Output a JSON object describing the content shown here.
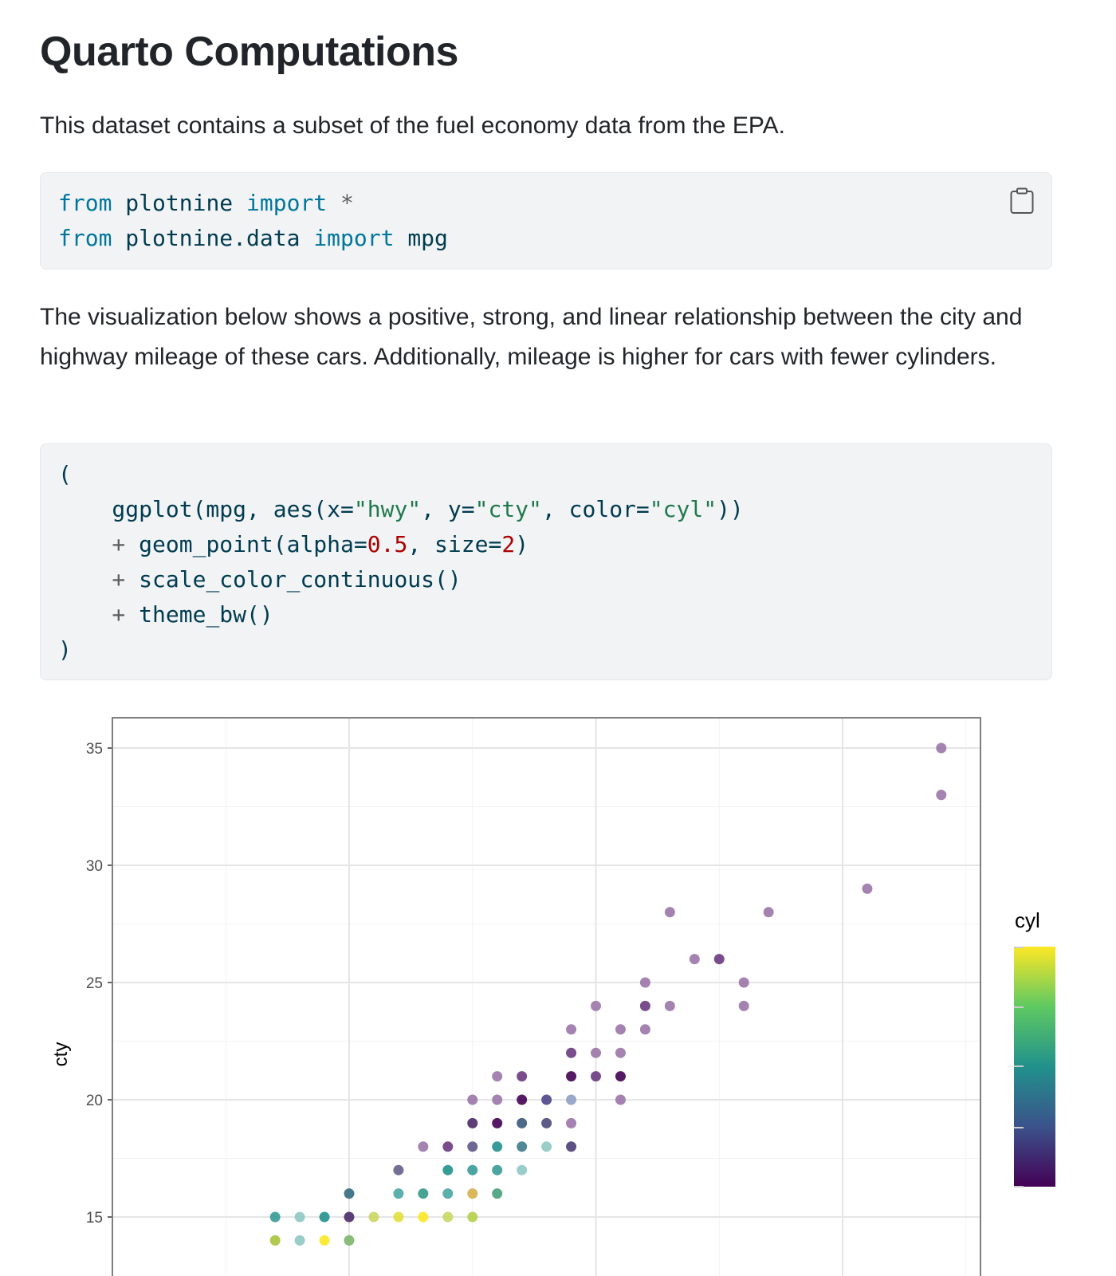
{
  "title": "Quarto Computations",
  "intro": "This dataset contains a subset of the fuel economy data from the EPA.",
  "code1": [
    [
      [
        "kw",
        "from"
      ],
      [
        "t",
        " plotnine "
      ],
      [
        "kw",
        "import"
      ],
      [
        "op",
        " *"
      ]
    ],
    [
      [
        "kw",
        "from"
      ],
      [
        "t",
        " plotnine.data "
      ],
      [
        "kw",
        "import"
      ],
      [
        "t",
        " mpg"
      ]
    ]
  ],
  "description": "The visualization below shows a positive, strong, and linear relationship between the city and highway mileage of these cars. Additionally, mileage is higher for cars with fewer cylinders.",
  "code2": [
    [
      [
        "t",
        "("
      ]
    ],
    [
      [
        "t",
        "    ggplot(mpg, aes(x="
      ],
      [
        "st",
        "\"hwy\""
      ],
      [
        "t",
        ", y="
      ],
      [
        "st",
        "\"cty\""
      ],
      [
        "t",
        ", color="
      ],
      [
        "st",
        "\"cyl\""
      ],
      [
        "t",
        "))"
      ]
    ],
    [
      [
        "op",
        "    + "
      ],
      [
        "t",
        "geom_point(alpha="
      ],
      [
        "nu",
        "0.5"
      ],
      [
        "t",
        ", size="
      ],
      [
        "nu",
        "2"
      ],
      [
        "t",
        ")"
      ]
    ],
    [
      [
        "op",
        "    + "
      ],
      [
        "t",
        "scale_color_continuous()"
      ]
    ],
    [
      [
        "op",
        "    + "
      ],
      [
        "t",
        "theme_bw()"
      ]
    ],
    [
      [
        "t",
        ")"
      ]
    ]
  ],
  "copy_icon": "clipboard-icon",
  "chart_data": {
    "type": "scatter",
    "xlabel": "",
    "ylabel": "cty",
    "xlim": [
      10.4,
      45.5
    ],
    "ylim": [
      13.3,
      36.3
    ],
    "x_major_gridlines": [
      20,
      30,
      40
    ],
    "x_minor_gridlines": [
      15,
      25,
      35,
      45
    ],
    "y_ticks": [
      15,
      20,
      25,
      30,
      35
    ],
    "y_tick_labels": [
      "15",
      "20",
      "25",
      "30",
      "35"
    ],
    "grid": true,
    "legend": {
      "title": "cyl",
      "type": "colorbar",
      "placement": "right",
      "colors": [
        "#440154",
        "#3b528b",
        "#21918c",
        "#5ec962",
        "#fde725"
      ]
    },
    "points": [
      {
        "x": 44,
        "y": 35,
        "color": "#9b76a8"
      },
      {
        "x": 44,
        "y": 33,
        "color": "#9b76a8"
      },
      {
        "x": 41,
        "y": 29,
        "color": "#9b76a8"
      },
      {
        "x": 33,
        "y": 28,
        "color": "#9b76a8"
      },
      {
        "x": 37,
        "y": 28,
        "color": "#9b76a8"
      },
      {
        "x": 34,
        "y": 26,
        "color": "#9b76a8"
      },
      {
        "x": 35,
        "y": 26,
        "color": "#6a3a7e"
      },
      {
        "x": 32,
        "y": 25,
        "color": "#9b76a8"
      },
      {
        "x": 36,
        "y": 25,
        "color": "#9b76a8"
      },
      {
        "x": 30,
        "y": 24,
        "color": "#9b76a8"
      },
      {
        "x": 32,
        "y": 24,
        "color": "#6a3a7e"
      },
      {
        "x": 33,
        "y": 24,
        "color": "#9b76a8"
      },
      {
        "x": 36,
        "y": 24,
        "color": "#9b76a8"
      },
      {
        "x": 29,
        "y": 23,
        "color": "#9b76a8"
      },
      {
        "x": 31,
        "y": 23,
        "color": "#9b76a8"
      },
      {
        "x": 32,
        "y": 23,
        "color": "#9b76a8"
      },
      {
        "x": 29,
        "y": 22,
        "color": "#6a3a7e"
      },
      {
        "x": 30,
        "y": 22,
        "color": "#9b76a8"
      },
      {
        "x": 31,
        "y": 22,
        "color": "#9b76a8"
      },
      {
        "x": 26,
        "y": 21,
        "color": "#9b76a8"
      },
      {
        "x": 27,
        "y": 21,
        "color": "#6a3a7e"
      },
      {
        "x": 29,
        "y": 21,
        "color": "#440154"
      },
      {
        "x": 30,
        "y": 21,
        "color": "#6a3a7e"
      },
      {
        "x": 31,
        "y": 21,
        "color": "#440154"
      },
      {
        "x": 25,
        "y": 20,
        "color": "#9b76a8"
      },
      {
        "x": 26,
        "y": 20,
        "color": "#9b76a8"
      },
      {
        "x": 27,
        "y": 20,
        "color": "#440154"
      },
      {
        "x": 28,
        "y": 20,
        "color": "#4c4587"
      },
      {
        "x": 29,
        "y": 20,
        "color": "#8fa0c4"
      },
      {
        "x": 31,
        "y": 20,
        "color": "#9b76a8"
      },
      {
        "x": 25,
        "y": 19,
        "color": "#4b2a68"
      },
      {
        "x": 26,
        "y": 19,
        "color": "#440154"
      },
      {
        "x": 27,
        "y": 19,
        "color": "#3a5a7c"
      },
      {
        "x": 28,
        "y": 19,
        "color": "#4a4a7c"
      },
      {
        "x": 29,
        "y": 19,
        "color": "#9b76a8"
      },
      {
        "x": 23,
        "y": 18,
        "color": "#9b76a8"
      },
      {
        "x": 24,
        "y": 18,
        "color": "#6a3a7e"
      },
      {
        "x": 25,
        "y": 18,
        "color": "#5f5688"
      },
      {
        "x": 26,
        "y": 18,
        "color": "#21918c"
      },
      {
        "x": 27,
        "y": 18,
        "color": "#3f7a8c"
      },
      {
        "x": 28,
        "y": 18,
        "color": "#8fc8c4"
      },
      {
        "x": 29,
        "y": 18,
        "color": "#4a3e74"
      },
      {
        "x": 22,
        "y": 17,
        "color": "#63608a"
      },
      {
        "x": 24,
        "y": 17,
        "color": "#21918c"
      },
      {
        "x": 25,
        "y": 17,
        "color": "#399b97"
      },
      {
        "x": 26,
        "y": 17,
        "color": "#399b97"
      },
      {
        "x": 27,
        "y": 17,
        "color": "#8fc8c4"
      },
      {
        "x": 20,
        "y": 16,
        "color": "#336a80"
      },
      {
        "x": 22,
        "y": 16,
        "color": "#4ba6a2"
      },
      {
        "x": 23,
        "y": 16,
        "color": "#349a86"
      },
      {
        "x": 24,
        "y": 16,
        "color": "#4ba6a2"
      },
      {
        "x": 25,
        "y": 16,
        "color": "#d4b048"
      },
      {
        "x": 26,
        "y": 16,
        "color": "#45a07a"
      },
      {
        "x": 17,
        "y": 15,
        "color": "#349a94"
      },
      {
        "x": 18,
        "y": 15,
        "color": "#8fc8c4"
      },
      {
        "x": 19,
        "y": 15,
        "color": "#21918c"
      },
      {
        "x": 20,
        "y": 15,
        "color": "#4b2a68"
      },
      {
        "x": 21,
        "y": 15,
        "color": "#cad660"
      },
      {
        "x": 22,
        "y": 15,
        "color": "#e2df3c"
      },
      {
        "x": 23,
        "y": 15,
        "color": "#fde725"
      },
      {
        "x": 24,
        "y": 15,
        "color": "#cad660"
      },
      {
        "x": 25,
        "y": 15,
        "color": "#b5cf48"
      },
      {
        "x": 17,
        "y": 14,
        "color": "#a8c43a"
      },
      {
        "x": 18,
        "y": 14,
        "color": "#8fc8c4"
      },
      {
        "x": 19,
        "y": 14,
        "color": "#fde725"
      },
      {
        "x": 20,
        "y": 14,
        "color": "#7cb46a"
      }
    ]
  }
}
